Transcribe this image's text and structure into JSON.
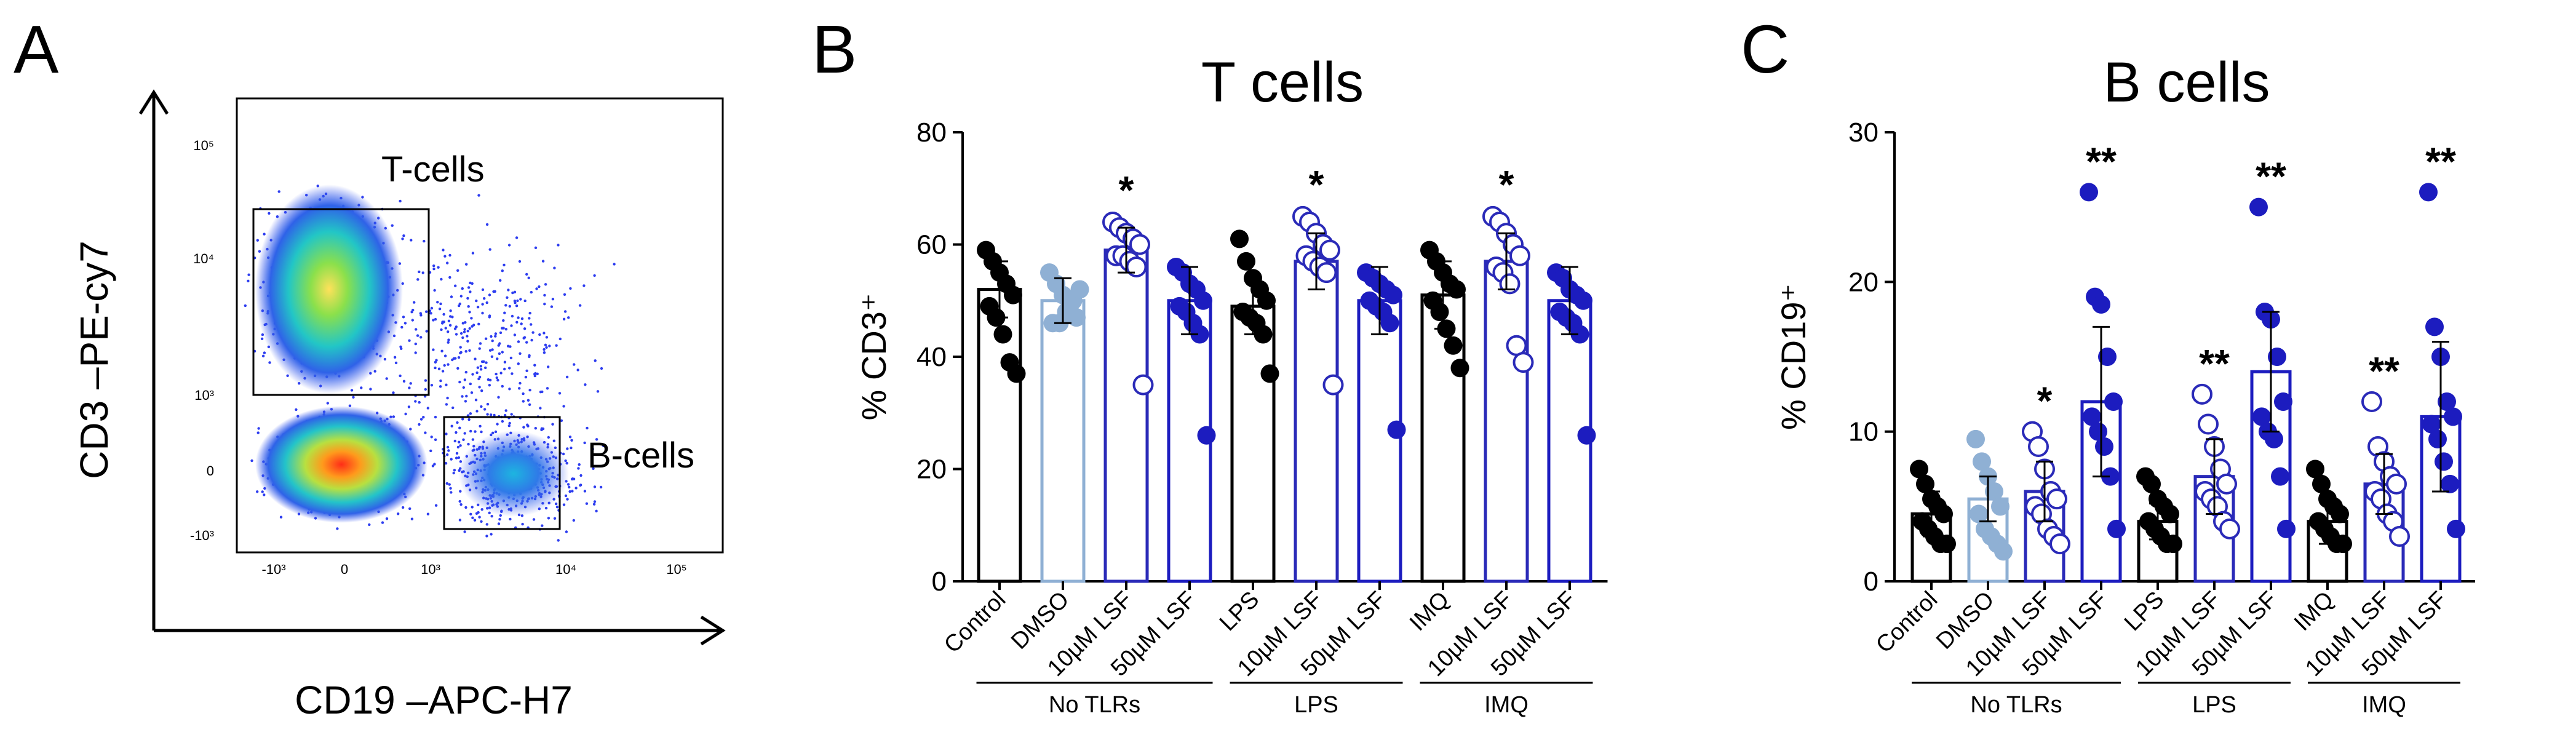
{
  "colors": {
    "black": "#000000",
    "light_blue": "#8fb0d4",
    "dark_blue": "#1c1cbf",
    "open_blue": "#2a2ab8"
  },
  "panel_a": {
    "label": "A",
    "ylabel": "CD3 –PE-cy7",
    "xlabel": "CD19 –APC-H7",
    "gate_t": "T-cells",
    "gate_b": "B-cells",
    "x_ticks": [
      "-10³",
      "0",
      "10³",
      "10⁴",
      "10⁵"
    ],
    "y_ticks": [
      "10⁵",
      "10⁴",
      "10³",
      "0",
      "-10³"
    ]
  },
  "panel_b": {
    "label": "B"
  },
  "panel_c": {
    "label": "C"
  },
  "chart_data": [
    {
      "type": "bar",
      "title": "T cells",
      "ylabel": "% CD3⁺",
      "ylim": [
        0,
        80
      ],
      "yticks": [
        0,
        20,
        40,
        60,
        80
      ],
      "categories": [
        "Control",
        "DMSO",
        "10µM LSF",
        "50µM LSF",
        "LPS",
        "10µM LSF",
        "50µM LSF",
        "IMQ",
        "10µM LSF",
        "50µM LSF"
      ],
      "groups": [
        {
          "name": "No  TLRs",
          "from": 0,
          "to": 3
        },
        {
          "name": "LPS",
          "from": 4,
          "to": 6
        },
        {
          "name": "IMQ",
          "from": 7,
          "to": 9
        }
      ],
      "styles": [
        "black",
        "light",
        "open",
        "dark",
        "black",
        "open",
        "dark",
        "black",
        "open",
        "dark"
      ],
      "means": [
        52,
        50,
        59,
        50,
        49,
        57,
        50,
        51,
        57,
        50
      ],
      "sd": [
        5,
        4,
        4,
        6,
        5,
        5,
        6,
        6,
        5,
        6
      ],
      "significance": [
        "",
        "",
        "*",
        "",
        "",
        "*",
        "",
        "",
        "*",
        ""
      ],
      "points": [
        [
          59,
          57,
          55,
          53,
          51,
          49,
          47,
          44,
          39,
          37
        ],
        [
          55,
          53,
          51,
          49,
          47,
          46,
          46,
          48,
          50,
          52
        ],
        [
          64,
          63,
          62,
          61,
          60,
          58,
          58,
          57,
          56,
          35
        ],
        [
          56,
          55,
          53,
          52,
          50,
          49,
          48,
          46,
          44,
          26
        ],
        [
          61,
          57,
          54,
          52,
          50,
          48,
          47,
          46,
          44,
          37
        ],
        [
          65,
          64,
          62,
          60,
          59,
          58,
          57,
          56,
          55,
          35
        ],
        [
          55,
          54,
          53,
          52,
          51,
          50,
          49,
          48,
          46,
          27
        ],
        [
          59,
          57,
          55,
          53,
          52,
          50,
          48,
          45,
          42,
          38
        ],
        [
          65,
          64,
          62,
          60,
          58,
          56,
          55,
          53,
          42,
          39
        ],
        [
          55,
          54,
          52,
          51,
          50,
          48,
          47,
          46,
          44,
          26
        ]
      ]
    },
    {
      "type": "bar",
      "title": "B cells",
      "ylabel": "% CD19⁺",
      "ylim": [
        0,
        30
      ],
      "yticks": [
        0,
        10,
        20,
        30
      ],
      "categories": [
        "Control",
        "DMSO",
        "10µM LSF",
        "50µM LSF",
        "LPS",
        "10µM LSF",
        "50µM LSF",
        "IMQ",
        "10µM LSF",
        "50µM LSF"
      ],
      "groups": [
        {
          "name": "No  TLRs",
          "from": 0,
          "to": 3
        },
        {
          "name": "LPS",
          "from": 4,
          "to": 6
        },
        {
          "name": "IMQ",
          "from": 7,
          "to": 9
        }
      ],
      "styles": [
        "black",
        "light",
        "open",
        "dark",
        "black",
        "open",
        "dark",
        "black",
        "open",
        "dark"
      ],
      "means": [
        4.5,
        5.5,
        6,
        12,
        4,
        7,
        14,
        4,
        6.5,
        11
      ],
      "sd": [
        1.5,
        1.5,
        2,
        5,
        1.2,
        2.5,
        4,
        1.5,
        2,
        5
      ],
      "significance": [
        "",
        "",
        "*",
        "**",
        "",
        "**",
        "**",
        "",
        "**",
        "**"
      ],
      "points": [
        [
          7.5,
          6.5,
          5.5,
          5,
          4.5,
          4,
          3.5,
          3,
          2.5,
          2.5
        ],
        [
          9.5,
          8,
          7,
          6,
          5,
          4.5,
          3.5,
          3,
          2.5,
          2
        ],
        [
          10,
          9,
          7.5,
          6,
          5.5,
          5,
          4.5,
          3.5,
          3,
          2.5
        ],
        [
          26,
          19,
          18.5,
          15,
          12,
          11,
          10,
          9,
          7,
          3.5
        ],
        [
          7,
          6.5,
          5.5,
          5,
          4.5,
          4,
          3.5,
          3,
          2.5,
          2.5
        ],
        [
          12.5,
          10.5,
          9,
          7.5,
          6.5,
          6,
          5.5,
          5,
          4,
          3.5
        ],
        [
          25,
          18,
          17.5,
          15,
          12,
          11,
          10,
          9.5,
          7,
          3.5
        ],
        [
          7.5,
          6.5,
          5.5,
          5,
          4.5,
          4,
          3.5,
          3,
          2.5,
          2.5
        ],
        [
          12,
          9,
          8,
          7,
          6.5,
          6,
          5.5,
          4.5,
          4,
          3
        ],
        [
          26,
          17,
          15,
          12,
          11,
          10.5,
          9.5,
          8,
          6.5,
          3.5
        ]
      ]
    }
  ]
}
